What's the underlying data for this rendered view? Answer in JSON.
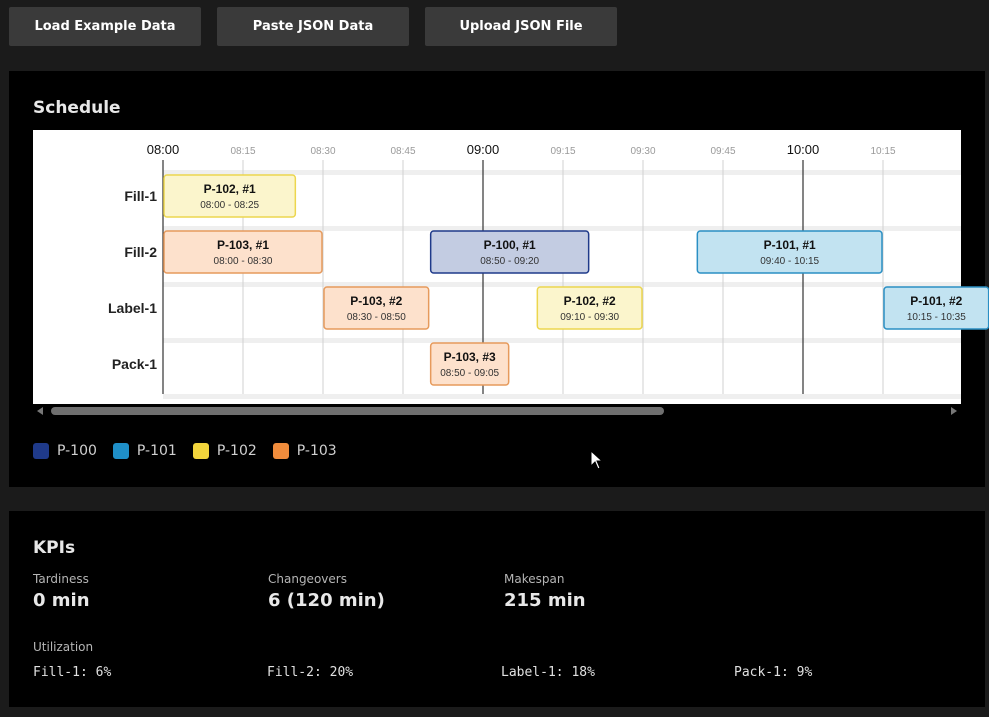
{
  "toolbar": {
    "load_example": "Load Example Data",
    "paste_json": "Paste JSON Data",
    "upload_json": "Upload JSON File"
  },
  "schedule": {
    "title": "Schedule",
    "resources": [
      "Fill-1",
      "Fill-2",
      "Label-1",
      "Pack-1"
    ],
    "ticks": [
      {
        "label": "08:00",
        "minute": 0,
        "major": true
      },
      {
        "label": "08:15",
        "minute": 15,
        "major": false
      },
      {
        "label": "08:30",
        "minute": 30,
        "major": false
      },
      {
        "label": "08:45",
        "minute": 45,
        "major": false
      },
      {
        "label": "09:00",
        "minute": 60,
        "major": true
      },
      {
        "label": "09:15",
        "minute": 75,
        "major": false
      },
      {
        "label": "09:30",
        "minute": 90,
        "major": false
      },
      {
        "label": "09:45",
        "minute": 105,
        "major": false
      },
      {
        "label": "10:00",
        "minute": 120,
        "major": true
      },
      {
        "label": "10:15",
        "minute": 135,
        "major": false
      }
    ],
    "tasks": [
      {
        "resource": "Fill-1",
        "product": "P-102",
        "label": "P-102, #1",
        "time": "08:00 - 08:25",
        "start": 0,
        "end": 25
      },
      {
        "resource": "Fill-2",
        "product": "P-103",
        "label": "P-103, #1",
        "time": "08:00 - 08:30",
        "start": 0,
        "end": 30
      },
      {
        "resource": "Fill-2",
        "product": "P-100",
        "label": "P-100, #1",
        "time": "08:50 - 09:20",
        "start": 50,
        "end": 80
      },
      {
        "resource": "Fill-2",
        "product": "P-101",
        "label": "P-101, #1",
        "time": "09:40 - 10:15",
        "start": 100,
        "end": 135
      },
      {
        "resource": "Label-1",
        "product": "P-103",
        "label": "P-103, #2",
        "time": "08:30 - 08:50",
        "start": 30,
        "end": 50
      },
      {
        "resource": "Label-1",
        "product": "P-102",
        "label": "P-102, #2",
        "time": "09:10 - 09:30",
        "start": 70,
        "end": 90
      },
      {
        "resource": "Label-1",
        "product": "P-101",
        "label": "P-101, #2",
        "time": "10:15 - 10:35",
        "start": 135,
        "end": 155
      },
      {
        "resource": "Pack-1",
        "product": "P-103",
        "label": "P-103, #3",
        "time": "08:50 - 09:05",
        "start": 50,
        "end": 65
      }
    ],
    "legend": [
      {
        "name": "P-100",
        "color": "#1f3a8a"
      },
      {
        "name": "P-101",
        "color": "#1f8fc8"
      },
      {
        "name": "P-102",
        "color": "#f2d53c"
      },
      {
        "name": "P-103",
        "color": "#f08c3c"
      }
    ],
    "product_styles": {
      "P-100": {
        "fill": "#c3cce2",
        "stroke": "#1f3a8a"
      },
      "P-101": {
        "fill": "#c2e3f1",
        "stroke": "#2a8fc4"
      },
      "P-102": {
        "fill": "#fbf5cc",
        "stroke": "#ecd64e"
      },
      "P-103": {
        "fill": "#fde1cc",
        "stroke": "#e69a5c"
      }
    }
  },
  "kpis": {
    "title": "KPIs",
    "tardiness_label": "Tardiness",
    "tardiness_value": "0 min",
    "changeovers_label": "Changeovers",
    "changeovers_value": "6 (120 min)",
    "makespan_label": "Makespan",
    "makespan_value": "215 min",
    "utilization_label": "Utilization",
    "utilization": [
      {
        "resource": "Fill-1",
        "text": "Fill-1: 6%"
      },
      {
        "resource": "Fill-2",
        "text": "Fill-2: 20%"
      },
      {
        "resource": "Label-1",
        "text": "Label-1: 18%"
      },
      {
        "resource": "Pack-1",
        "text": "Pack-1: 9%"
      }
    ]
  }
}
